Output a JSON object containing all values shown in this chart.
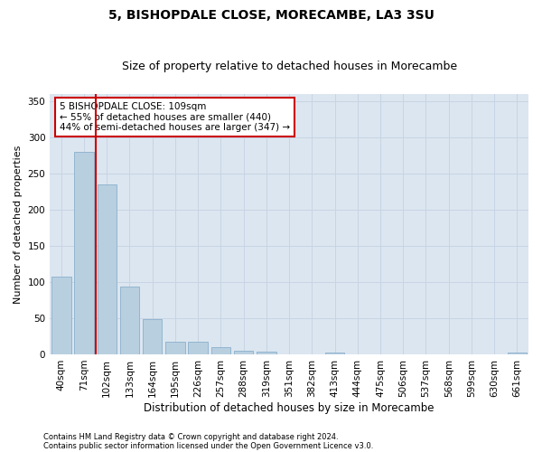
{
  "title1": "5, BISHOPDALE CLOSE, MORECAMBE, LA3 3SU",
  "title2": "Size of property relative to detached houses in Morecambe",
  "xlabel": "Distribution of detached houses by size in Morecambe",
  "ylabel": "Number of detached properties",
  "footer1": "Contains HM Land Registry data © Crown copyright and database right 2024.",
  "footer2": "Contains public sector information licensed under the Open Government Licence v3.0.",
  "categories": [
    "40sqm",
    "71sqm",
    "102sqm",
    "133sqm",
    "164sqm",
    "195sqm",
    "226sqm",
    "257sqm",
    "288sqm",
    "319sqm",
    "351sqm",
    "382sqm",
    "413sqm",
    "444sqm",
    "475sqm",
    "506sqm",
    "537sqm",
    "568sqm",
    "599sqm",
    "630sqm",
    "661sqm"
  ],
  "values": [
    108,
    280,
    235,
    94,
    49,
    18,
    17,
    10,
    5,
    4,
    0,
    0,
    3,
    0,
    0,
    0,
    0,
    0,
    0,
    0,
    3
  ],
  "bar_color": "#b8cfe0",
  "bar_edge_color": "#8ab0cc",
  "highlight_color": "#cc0000",
  "annotation_text": "5 BISHOPDALE CLOSE: 109sqm\n← 55% of detached houses are smaller (440)\n44% of semi-detached houses are larger (347) →",
  "annotation_box_color": "white",
  "annotation_box_edge_color": "#cc0000",
  "ylim": [
    0,
    360
  ],
  "yticks": [
    0,
    50,
    100,
    150,
    200,
    250,
    300,
    350
  ],
  "grid_color": "#c8d4e4",
  "background_color": "#dce6f0",
  "title1_fontsize": 10,
  "title2_fontsize": 9,
  "xlabel_fontsize": 8.5,
  "ylabel_fontsize": 8,
  "tick_fontsize": 7.5,
  "annotation_fontsize": 7.5,
  "footer_fontsize": 6.0
}
